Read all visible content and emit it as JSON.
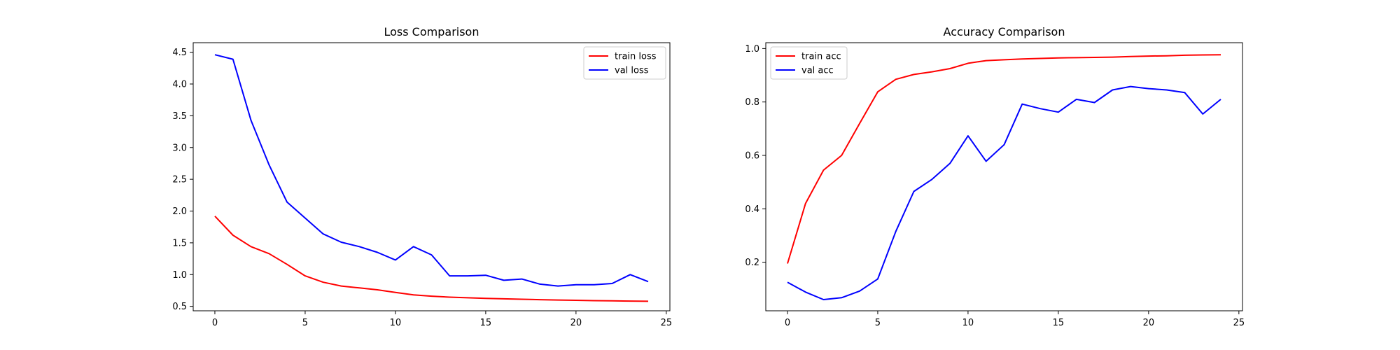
{
  "chart_data": [
    {
      "type": "line",
      "title": "Loss Comparison",
      "xlabel": "",
      "ylabel": "",
      "xlim": [
        -1.2,
        25.2
      ],
      "ylim": [
        0.43,
        4.65
      ],
      "xticks": [
        0,
        5,
        10,
        15,
        20,
        25
      ],
      "yticks": [
        0.5,
        1.0,
        1.5,
        2.0,
        2.5,
        3.0,
        3.5,
        4.0,
        4.5
      ],
      "grid": false,
      "legend_position": "top-right",
      "x": [
        0,
        1,
        2,
        3,
        4,
        5,
        6,
        7,
        8,
        9,
        10,
        11,
        12,
        13,
        14,
        15,
        16,
        17,
        18,
        19,
        20,
        21,
        22,
        23,
        24
      ],
      "series": [
        {
          "name": "train loss",
          "color": "#ff0000",
          "values": [
            1.92,
            1.62,
            1.44,
            1.33,
            1.16,
            0.98,
            0.88,
            0.82,
            0.79,
            0.76,
            0.72,
            0.68,
            0.66,
            0.645,
            0.635,
            0.625,
            0.618,
            0.612,
            0.605,
            0.6,
            0.595,
            0.59,
            0.586,
            0.583,
            0.58
          ]
        },
        {
          "name": "val loss",
          "color": "#0000ff",
          "values": [
            4.46,
            4.39,
            3.43,
            2.73,
            2.14,
            1.89,
            1.64,
            1.51,
            1.44,
            1.35,
            1.23,
            1.44,
            1.31,
            0.98,
            0.98,
            0.99,
            0.91,
            0.93,
            0.85,
            0.82,
            0.84,
            0.84,
            0.86,
            1.0,
            0.89
          ]
        }
      ]
    },
    {
      "type": "line",
      "title": "Accuracy Comparison",
      "xlabel": "",
      "ylabel": "",
      "xlim": [
        -1.2,
        25.2
      ],
      "ylim": [
        0.018,
        1.022
      ],
      "xticks": [
        0,
        5,
        10,
        15,
        20,
        25
      ],
      "yticks": [
        0.2,
        0.4,
        0.6,
        0.8,
        1.0
      ],
      "grid": false,
      "legend_position": "top-left",
      "x": [
        0,
        1,
        2,
        3,
        4,
        5,
        6,
        7,
        8,
        9,
        10,
        11,
        12,
        13,
        14,
        15,
        16,
        17,
        18,
        19,
        20,
        21,
        22,
        23,
        24
      ],
      "series": [
        {
          "name": "train acc",
          "color": "#ff0000",
          "values": [
            0.195,
            0.42,
            0.545,
            0.6,
            0.72,
            0.838,
            0.885,
            0.903,
            0.913,
            0.925,
            0.945,
            0.955,
            0.958,
            0.961,
            0.963,
            0.965,
            0.966,
            0.967,
            0.968,
            0.97,
            0.972,
            0.973,
            0.975,
            0.976,
            0.977
          ]
        },
        {
          "name": "val acc",
          "color": "#0000ff",
          "values": [
            0.125,
            0.088,
            0.06,
            0.067,
            0.092,
            0.137,
            0.315,
            0.465,
            0.51,
            0.57,
            0.673,
            0.578,
            0.64,
            0.792,
            0.775,
            0.762,
            0.81,
            0.798,
            0.845,
            0.858,
            0.85,
            0.845,
            0.835,
            0.755,
            0.81
          ]
        }
      ]
    }
  ]
}
